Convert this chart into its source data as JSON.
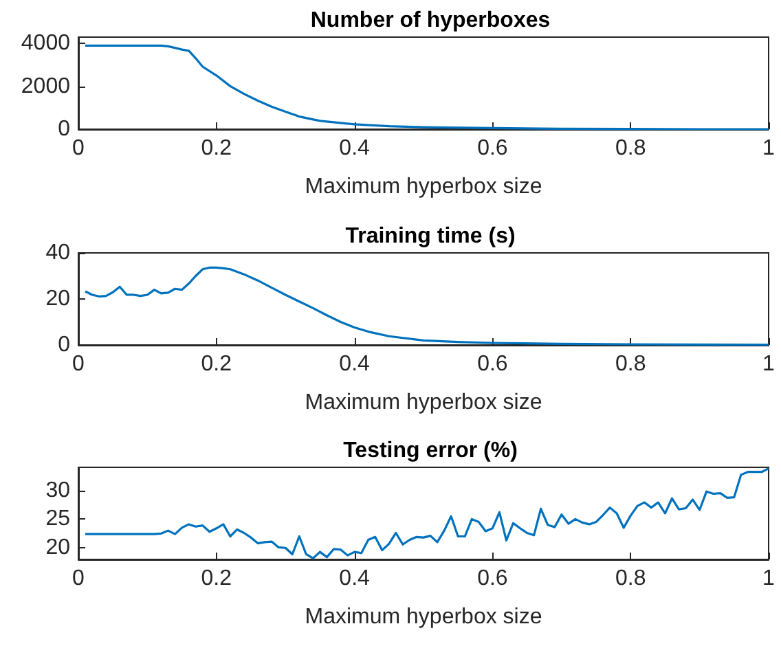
{
  "chart_data": [
    {
      "type": "line",
      "title": "Number of hyperboxes",
      "xlabel": "Maximum hyperbox size",
      "xlim": [
        0,
        1
      ],
      "xticks": [
        0,
        0.2,
        0.4,
        0.6,
        0.8,
        1
      ],
      "ylim": [
        0,
        4300
      ],
      "yticks": [
        0,
        2000,
        4000
      ],
      "marker": "none",
      "line_style": "solid",
      "series": [
        {
          "color": "#0072bd",
          "x": [
            0.01,
            0.05,
            0.1,
            0.12,
            0.13,
            0.14,
            0.15,
            0.16,
            0.17,
            0.18,
            0.2,
            0.22,
            0.24,
            0.26,
            0.28,
            0.3,
            0.32,
            0.35,
            0.4,
            0.45,
            0.5,
            0.6,
            0.7,
            0.8,
            0.9,
            1
          ],
          "values": [
            3900,
            3900,
            3900,
            3900,
            3870,
            3800,
            3720,
            3660,
            3310,
            2920,
            2510,
            2010,
            1650,
            1330,
            1050,
            820,
            590,
            390,
            230,
            140,
            90,
            50,
            20,
            10,
            0,
            0
          ]
        }
      ]
    },
    {
      "type": "line",
      "title": "Training time (s)",
      "xlabel": "Maximum hyperbox size",
      "xlim": [
        0,
        1
      ],
      "xticks": [
        0,
        0.2,
        0.4,
        0.6,
        0.8,
        1
      ],
      "ylim": [
        0,
        40
      ],
      "yticks": [
        0,
        20,
        40
      ],
      "marker": "none",
      "line_style": "solid",
      "series": [
        {
          "color": "#0072bd",
          "x": [
            0.01,
            0.02,
            0.03,
            0.04,
            0.05,
            0.06,
            0.07,
            0.08,
            0.09,
            0.1,
            0.11,
            0.12,
            0.13,
            0.14,
            0.15,
            0.16,
            0.17,
            0.18,
            0.19,
            0.2,
            0.21,
            0.22,
            0.24,
            0.26,
            0.28,
            0.3,
            0.32,
            0.34,
            0.36,
            0.38,
            0.4,
            0.42,
            0.45,
            0.5,
            0.55,
            0.6,
            0.7,
            0.8,
            0.9,
            1
          ],
          "values": [
            23.3,
            21.8,
            21.1,
            21.3,
            22.9,
            25.3,
            21.8,
            21.8,
            21.3,
            21.8,
            24.0,
            22.4,
            22.7,
            24.4,
            24.0,
            26.7,
            30.0,
            32.9,
            33.6,
            33.6,
            33.3,
            32.9,
            30.7,
            28.0,
            24.9,
            21.8,
            18.9,
            16.0,
            12.9,
            10.0,
            7.6,
            5.8,
            3.8,
            2.0,
            1.3,
            0.9,
            0.5,
            0.3,
            0.2,
            0.1
          ]
        }
      ]
    },
    {
      "type": "line",
      "title": "Testing error (%)",
      "xlabel": "Maximum hyperbox size",
      "xlim": [
        0,
        1
      ],
      "xticks": [
        0,
        0.2,
        0.4,
        0.6,
        0.8,
        1
      ],
      "ylim": [
        18,
        34
      ],
      "yticks": [
        20,
        25,
        30
      ],
      "marker": "none",
      "line_style": "solid",
      "series": [
        {
          "color": "#0072bd",
          "x": [
            0.01,
            0.02,
            0.03,
            0.04,
            0.05,
            0.06,
            0.07,
            0.08,
            0.09,
            0.1,
            0.11,
            0.12,
            0.13,
            0.14,
            0.15,
            0.16,
            0.17,
            0.18,
            0.19,
            0.2,
            0.21,
            0.22,
            0.23,
            0.24,
            0.25,
            0.26,
            0.27,
            0.28,
            0.29,
            0.3,
            0.31,
            0.32,
            0.33,
            0.34,
            0.35,
            0.36,
            0.37,
            0.38,
            0.39,
            0.4,
            0.41,
            0.42,
            0.43,
            0.44,
            0.45,
            0.46,
            0.47,
            0.48,
            0.49,
            0.5,
            0.51,
            0.52,
            0.53,
            0.54,
            0.55,
            0.56,
            0.57,
            0.58,
            0.59,
            0.6,
            0.61,
            0.62,
            0.63,
            0.64,
            0.65,
            0.66,
            0.67,
            0.68,
            0.69,
            0.7,
            0.71,
            0.72,
            0.73,
            0.74,
            0.75,
            0.76,
            0.77,
            0.78,
            0.79,
            0.8,
            0.81,
            0.82,
            0.83,
            0.84,
            0.85,
            0.86,
            0.87,
            0.88,
            0.89,
            0.9,
            0.91,
            0.92,
            0.93,
            0.94,
            0.95,
            0.96,
            0.97,
            0.98,
            0.99,
            1
          ],
          "values": [
            22.4,
            22.4,
            22.4,
            22.4,
            22.4,
            22.4,
            22.4,
            22.4,
            22.4,
            22.4,
            22.4,
            22.5,
            23.0,
            22.4,
            23.5,
            24.1,
            23.7,
            23.9,
            22.8,
            23.4,
            24.1,
            22.0,
            23.2,
            22.6,
            21.8,
            20.8,
            21.0,
            21.1,
            20.1,
            20.0,
            18.9,
            22.0,
            18.9,
            18.2,
            19.3,
            18.4,
            19.8,
            19.7,
            18.7,
            19.3,
            19.1,
            21.4,
            21.9,
            19.6,
            20.7,
            22.6,
            20.6,
            21.4,
            21.9,
            21.8,
            22.1,
            21.0,
            23.0,
            25.5,
            22.0,
            22.0,
            25.0,
            24.5,
            22.9,
            23.4,
            26.2,
            21.3,
            24.3,
            23.4,
            22.6,
            22.2,
            26.8,
            24.0,
            23.6,
            25.8,
            24.2,
            25.0,
            24.4,
            24.1,
            24.5,
            25.7,
            27.0,
            26.0,
            23.5,
            25.6,
            27.3,
            27.9,
            27.0,
            27.9,
            26.0,
            28.6,
            26.7,
            26.9,
            28.4,
            26.6,
            29.8,
            29.4,
            29.5,
            28.7,
            28.8,
            32.7,
            33.2,
            33.2,
            33.2,
            33.8
          ]
        }
      ]
    }
  ]
}
